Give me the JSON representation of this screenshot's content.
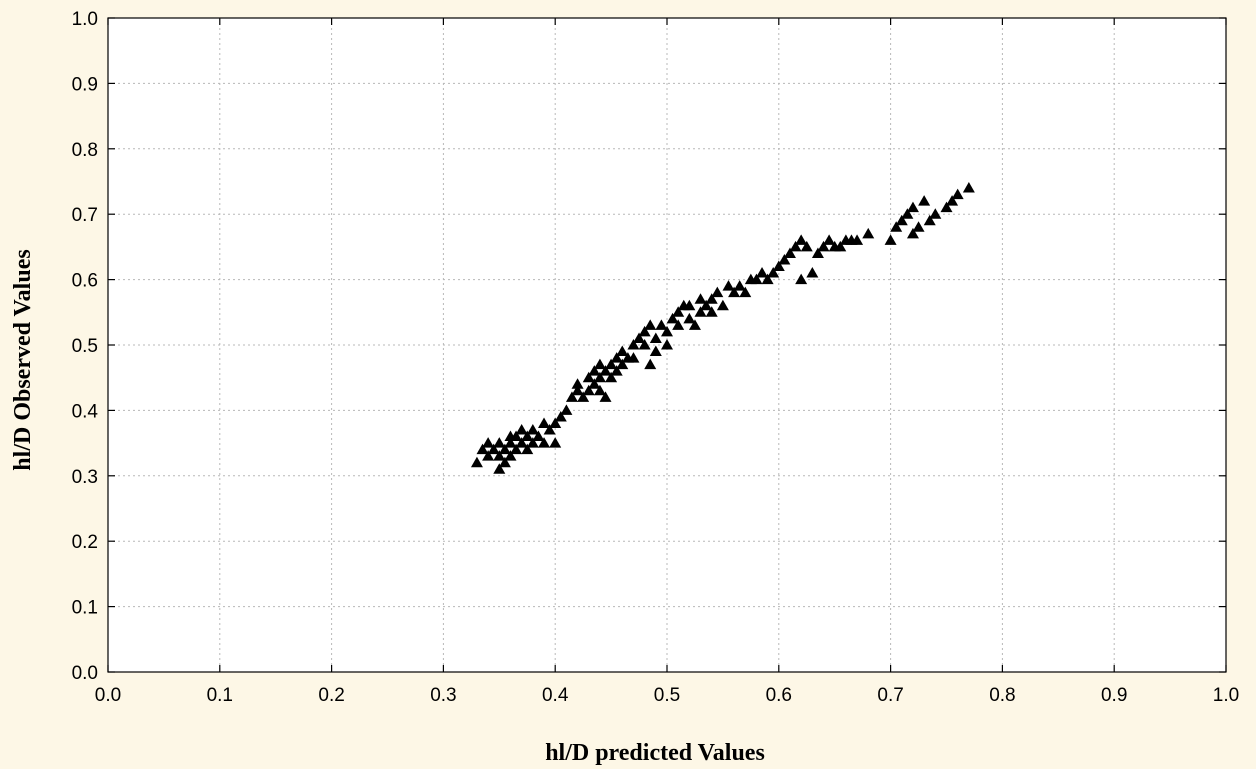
{
  "chart_data": {
    "type": "scatter",
    "title": "",
    "xlabel": "hl/D predicted Values",
    "ylabel": "hl/D Observed Values",
    "xlim": [
      0.0,
      1.0
    ],
    "ylim": [
      0.0,
      1.0
    ],
    "xticks": [
      "0.0",
      "0.1",
      "0.2",
      "0.3",
      "0.4",
      "0.5",
      "0.6",
      "0.7",
      "0.8",
      "0.9",
      "1.0"
    ],
    "yticks": [
      "0.0",
      "0.1",
      "0.2",
      "0.3",
      "0.4",
      "0.5",
      "0.6",
      "0.7",
      "0.8",
      "0.9",
      "1.0"
    ],
    "grid": true,
    "marker": "triangle",
    "marker_color": "#000000",
    "background_color": "#fdf7e6",
    "plot_background_color": "#ffffff",
    "points": [
      [
        0.33,
        0.32
      ],
      [
        0.335,
        0.34
      ],
      [
        0.34,
        0.33
      ],
      [
        0.34,
        0.35
      ],
      [
        0.345,
        0.34
      ],
      [
        0.35,
        0.35
      ],
      [
        0.35,
        0.33
      ],
      [
        0.35,
        0.31
      ],
      [
        0.355,
        0.32
      ],
      [
        0.355,
        0.34
      ],
      [
        0.36,
        0.35
      ],
      [
        0.36,
        0.33
      ],
      [
        0.36,
        0.36
      ],
      [
        0.365,
        0.34
      ],
      [
        0.365,
        0.36
      ],
      [
        0.37,
        0.35
      ],
      [
        0.37,
        0.37
      ],
      [
        0.375,
        0.34
      ],
      [
        0.375,
        0.36
      ],
      [
        0.38,
        0.35
      ],
      [
        0.38,
        0.37
      ],
      [
        0.385,
        0.36
      ],
      [
        0.39,
        0.38
      ],
      [
        0.39,
        0.35
      ],
      [
        0.395,
        0.37
      ],
      [
        0.4,
        0.38
      ],
      [
        0.4,
        0.35
      ],
      [
        0.405,
        0.39
      ],
      [
        0.41,
        0.4
      ],
      [
        0.415,
        0.42
      ],
      [
        0.42,
        0.43
      ],
      [
        0.42,
        0.44
      ],
      [
        0.425,
        0.42
      ],
      [
        0.43,
        0.45
      ],
      [
        0.43,
        0.43
      ],
      [
        0.435,
        0.46
      ],
      [
        0.435,
        0.44
      ],
      [
        0.44,
        0.47
      ],
      [
        0.44,
        0.45
      ],
      [
        0.44,
        0.43
      ],
      [
        0.445,
        0.42
      ],
      [
        0.445,
        0.46
      ],
      [
        0.45,
        0.47
      ],
      [
        0.45,
        0.45
      ],
      [
        0.455,
        0.48
      ],
      [
        0.455,
        0.46
      ],
      [
        0.46,
        0.49
      ],
      [
        0.46,
        0.47
      ],
      [
        0.465,
        0.48
      ],
      [
        0.47,
        0.5
      ],
      [
        0.47,
        0.48
      ],
      [
        0.475,
        0.51
      ],
      [
        0.48,
        0.5
      ],
      [
        0.48,
        0.52
      ],
      [
        0.485,
        0.47
      ],
      [
        0.485,
        0.53
      ],
      [
        0.49,
        0.49
      ],
      [
        0.49,
        0.51
      ],
      [
        0.495,
        0.53
      ],
      [
        0.5,
        0.52
      ],
      [
        0.5,
        0.5
      ],
      [
        0.505,
        0.54
      ],
      [
        0.51,
        0.53
      ],
      [
        0.51,
        0.55
      ],
      [
        0.515,
        0.56
      ],
      [
        0.52,
        0.54
      ],
      [
        0.52,
        0.56
      ],
      [
        0.525,
        0.53
      ],
      [
        0.53,
        0.57
      ],
      [
        0.53,
        0.55
      ],
      [
        0.535,
        0.56
      ],
      [
        0.54,
        0.57
      ],
      [
        0.54,
        0.55
      ],
      [
        0.545,
        0.58
      ],
      [
        0.55,
        0.56
      ],
      [
        0.555,
        0.59
      ],
      [
        0.56,
        0.58
      ],
      [
        0.565,
        0.59
      ],
      [
        0.57,
        0.58
      ],
      [
        0.575,
        0.6
      ],
      [
        0.58,
        0.6
      ],
      [
        0.585,
        0.61
      ],
      [
        0.59,
        0.6
      ],
      [
        0.595,
        0.61
      ],
      [
        0.6,
        0.62
      ],
      [
        0.605,
        0.63
      ],
      [
        0.61,
        0.64
      ],
      [
        0.615,
        0.65
      ],
      [
        0.62,
        0.66
      ],
      [
        0.62,
        0.6
      ],
      [
        0.625,
        0.65
      ],
      [
        0.63,
        0.61
      ],
      [
        0.635,
        0.64
      ],
      [
        0.64,
        0.65
      ],
      [
        0.645,
        0.66
      ],
      [
        0.65,
        0.65
      ],
      [
        0.655,
        0.65
      ],
      [
        0.66,
        0.66
      ],
      [
        0.665,
        0.66
      ],
      [
        0.67,
        0.66
      ],
      [
        0.68,
        0.67
      ],
      [
        0.7,
        0.66
      ],
      [
        0.705,
        0.68
      ],
      [
        0.71,
        0.69
      ],
      [
        0.715,
        0.7
      ],
      [
        0.72,
        0.71
      ],
      [
        0.72,
        0.67
      ],
      [
        0.725,
        0.68
      ],
      [
        0.73,
        0.72
      ],
      [
        0.735,
        0.69
      ],
      [
        0.74,
        0.7
      ],
      [
        0.75,
        0.71
      ],
      [
        0.755,
        0.72
      ],
      [
        0.76,
        0.73
      ],
      [
        0.77,
        0.74
      ]
    ]
  }
}
